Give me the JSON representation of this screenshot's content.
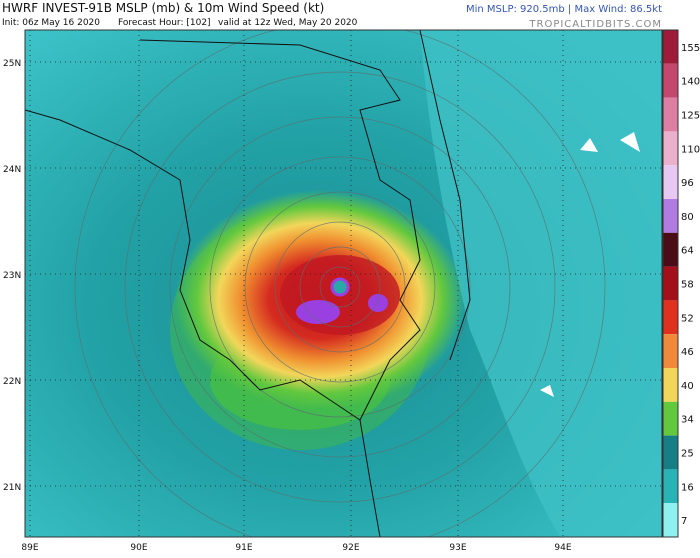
{
  "header": {
    "title": "HWRF INVEST-91B MSLP (mb) & 10m Wind Speed (kt)",
    "init": "Init: 06z May 16 2020",
    "forecast_hour": "Forecast Hour: [102]",
    "valid": "valid at 12z Wed, May 20 2020",
    "stats": "Min MSLP: 920.5mb | Max Wind: 86.5kt",
    "site": "TROPICALTIDBITS.COM"
  },
  "map": {
    "lat_labels": [
      "25N",
      "24N",
      "23N",
      "22N",
      "21N"
    ],
    "lon_labels": [
      "89E",
      "90E",
      "91E",
      "92E",
      "93E",
      "94E"
    ]
  },
  "colorbar": {
    "ticks": [
      155,
      140,
      125,
      110,
      96,
      80,
      64,
      58,
      52,
      46,
      40,
      34,
      25,
      16,
      7
    ],
    "colors": [
      "#9e1b3a",
      "#c4476e",
      "#dc7fa2",
      "#eab0cc",
      "#e6c8f2",
      "#b27be2",
      "#4a0d18",
      "#a3101a",
      "#e0301e",
      "#f08a3a",
      "#f2d65a",
      "#62c83e",
      "#167f86",
      "#28b3b6",
      "#8ff0f0"
    ]
  }
}
